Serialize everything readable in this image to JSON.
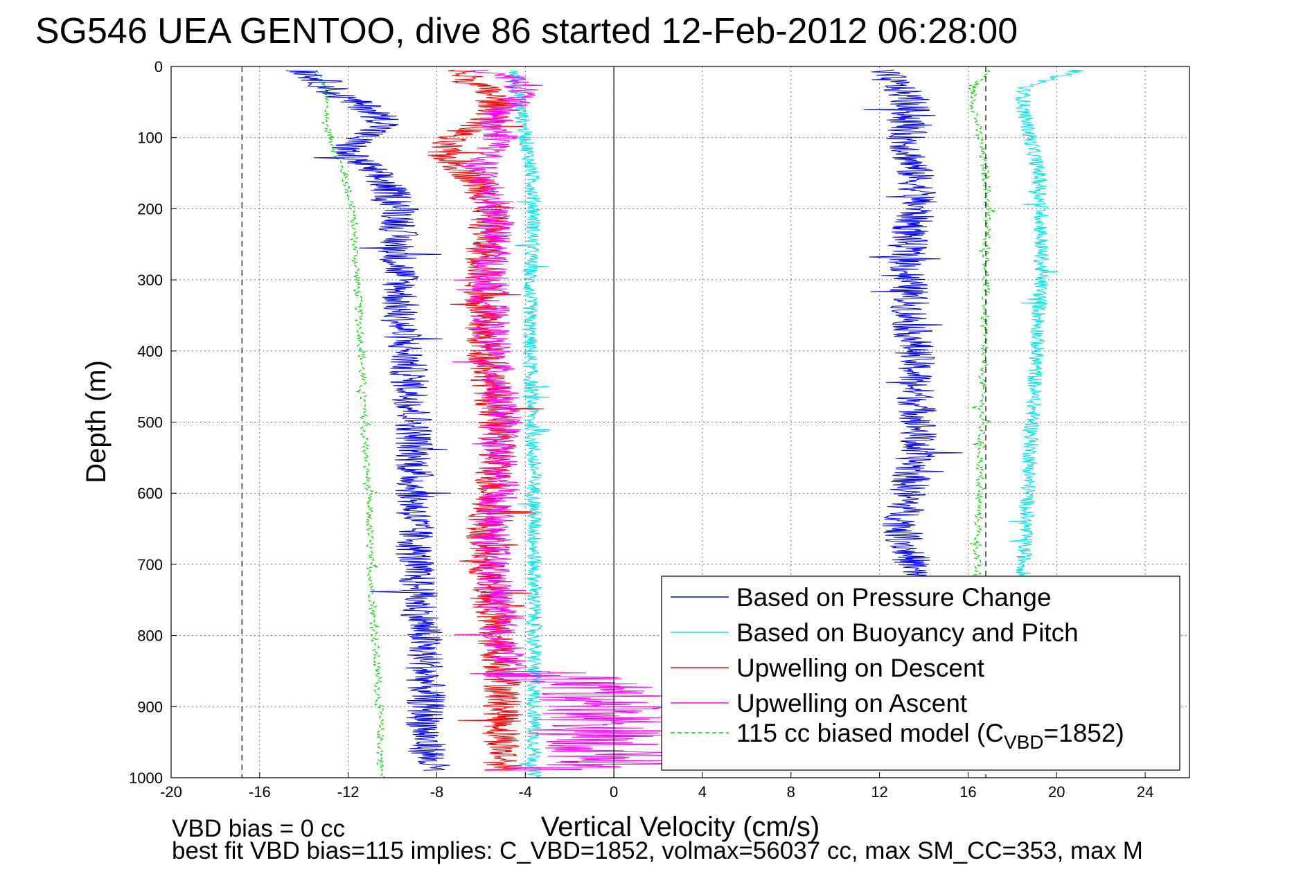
{
  "chart_data": {
    "type": "line",
    "title": "SG546 UEA GENTOO, dive 86 started 12-Feb-2012 06:28:00",
    "xlabel": "Vertical Velocity (cm/s)",
    "ylabel": "Depth (m)",
    "xlim": [
      -20,
      26
    ],
    "ylim": [
      1000,
      0
    ],
    "xticks": [
      -20,
      -16,
      -12,
      -8,
      -4,
      0,
      4,
      8,
      12,
      16,
      20,
      24
    ],
    "yticks": [
      0,
      100,
      200,
      300,
      400,
      500,
      600,
      700,
      800,
      900,
      1000
    ],
    "grid": true,
    "legend_position": "bottom-right",
    "reference_lines": [
      -16.8,
      0,
      16.8
    ],
    "series": [
      {
        "name": "Based on Pressure Change",
        "color": "#0000ff",
        "segments": [
          {
            "depth": [
              5,
              20,
              40,
              60,
              80,
              100,
              120,
              140,
              160,
              180,
              200,
              250,
              300,
              350,
              400,
              450,
              500,
              550,
              600,
              650,
              700,
              750,
              800,
              850,
              900,
              950,
              990
            ],
            "value": [
              -14,
              -13.2,
              -12.5,
              -11,
              -10.2,
              -11.5,
              -12.2,
              -11.2,
              -10.5,
              -10,
              -9.6,
              -9.8,
              -9.6,
              -9.7,
              -9.4,
              -9.2,
              -9,
              -9,
              -9,
              -9,
              -9,
              -8.8,
              -8.6,
              -8.5,
              -8.5,
              -8.5,
              -8.2
            ]
          },
          {
            "depth": [
              5,
              20,
              40,
              60,
              80,
              100,
              140,
              180,
              220,
              260,
              300,
              350,
              400,
              450,
              500,
              550,
              600,
              650,
              700,
              720
            ],
            "value": [
              12,
              12.5,
              13.2,
              13.4,
              13.3,
              13.2,
              13.5,
              13.8,
              13.5,
              13.2,
              13.3,
              13.4,
              13.6,
              13.6,
              13.8,
              13.6,
              13.3,
              13,
              13.5,
              13.5
            ]
          }
        ]
      },
      {
        "name": "Based on Buoyancy and Pitch",
        "color": "#00e6e6",
        "segments": [
          {
            "depth": [
              5,
              60,
              100,
              150,
              200,
              300,
              400,
              500,
              600,
              700,
              800,
              900,
              1000
            ],
            "value": [
              -4.5,
              -4.2,
              -4,
              -3.7,
              -3.6,
              -3.8,
              -3.8,
              -3.7,
              -3.6,
              -3.6,
              -3.6,
              -3.6,
              -3.6
            ]
          },
          {
            "depth": [
              5,
              30,
              60,
              100,
              150,
              200,
              300,
              400,
              500,
              600,
              700,
              720
            ],
            "value": [
              21,
              18.5,
              18.5,
              18.8,
              19.2,
              19.3,
              19.3,
              19.1,
              18.9,
              18.7,
              18.5,
              18.5
            ]
          }
        ]
      },
      {
        "name": "Upwelling on Descent",
        "color": "#ff0000",
        "segments": [
          {
            "depth": [
              5,
              20,
              40,
              60,
              80,
              100,
              120,
              140,
              160,
              180,
              200,
              250,
              300,
              350,
              400,
              450,
              500,
              550,
              600,
              650,
              700,
              750,
              800,
              850,
              900,
              950,
              990
            ],
            "value": [
              -7,
              -6.5,
              -5.5,
              -5.2,
              -5.8,
              -7.5,
              -7.8,
              -7,
              -6.2,
              -5.8,
              -5.6,
              -5.8,
              -5.9,
              -6,
              -5.8,
              -5.5,
              -5.3,
              -5.3,
              -5.5,
              -5.8,
              -5.8,
              -5.6,
              -5.4,
              -5,
              -5,
              -5,
              -5
            ]
          }
        ]
      },
      {
        "name": "Upwelling on Ascent",
        "color": "#ff00ff",
        "segments": [
          {
            "depth": [
              5,
              20,
              40,
              60,
              80,
              100,
              120,
              140,
              160,
              180,
              200,
              250,
              300,
              350,
              400,
              450,
              500,
              550,
              600,
              650,
              700,
              750,
              800,
              850,
              870,
              900,
              950,
              980,
              990
            ],
            "value": [
              -6,
              -4,
              -4.2,
              -5,
              -5.5,
              -5,
              -5.5,
              -6.2,
              -5.8,
              -5.5,
              -5.3,
              -5.5,
              -5.6,
              -5.6,
              -5.5,
              -5.2,
              -5,
              -5.2,
              -5.2,
              -5.5,
              -5.5,
              -5.3,
              -5.2,
              -4.5,
              -1,
              0,
              -1,
              0.5,
              -3
            ]
          }
        ]
      },
      {
        "name": "115 cc biased model (C",
        "subscript": "VBD",
        "suffix": "=1852)",
        "color": "#00dd00",
        "dashed": true,
        "segments": [
          {
            "depth": [
              5,
              30,
              60,
              80,
              100,
              150,
              200,
              300,
              400,
              500,
              600,
              700,
              800,
              900,
              1000
            ],
            "value": [
              -13.5,
              -13,
              -13,
              -13,
              -12.8,
              -12.2,
              -11.8,
              -11.6,
              -11.4,
              -11.3,
              -11.1,
              -11,
              -10.8,
              -10.6,
              -10.5
            ]
          },
          {
            "depth": [
              5,
              30,
              60,
              100,
              150,
              200,
              300,
              400,
              500,
              600,
              700,
              720
            ],
            "value": [
              17,
              16.2,
              16.3,
              16.5,
              16.8,
              16.9,
              16.8,
              16.7,
              16.6,
              16.5,
              16.4,
              16.4
            ]
          }
        ]
      }
    ],
    "annotations": [
      "VBD bias = 0 cc",
      "best fit VBD bias=115 implies: C_VBD=1852, volmax=56037 cc, max SM_CC=353, max M"
    ]
  }
}
